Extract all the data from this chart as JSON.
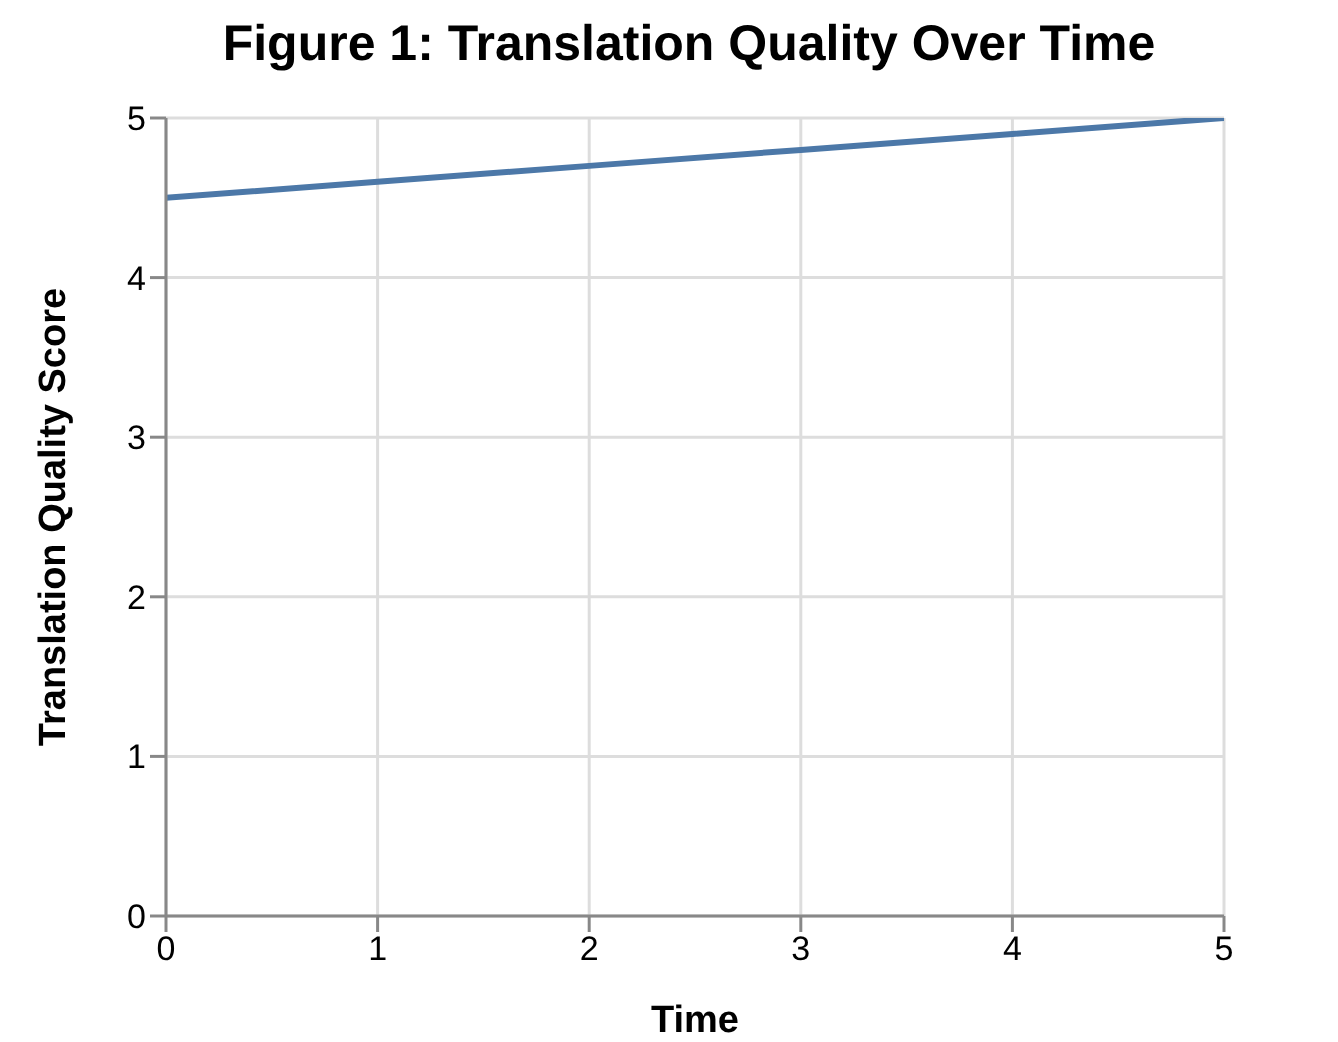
{
  "chart_data": {
    "type": "line",
    "title": "Figure 1: Translation Quality Over Time",
    "xlabel": "Time",
    "ylabel": "Translation Quality Score",
    "x": [
      0,
      1,
      2,
      3,
      4,
      5
    ],
    "series": [
      {
        "color": "#4c78a8",
        "values": [
          4.5,
          4.6,
          4.7,
          4.8,
          4.9,
          5.0
        ]
      }
    ],
    "xlim": [
      0,
      5
    ],
    "xticks": [
      0,
      1,
      2,
      3,
      4,
      5
    ],
    "ylim": [
      0,
      5
    ],
    "yticks": [
      0,
      1,
      2,
      3,
      4,
      5
    ],
    "grid": true,
    "marker": "none",
    "line_style": "solid",
    "legend": false
  }
}
